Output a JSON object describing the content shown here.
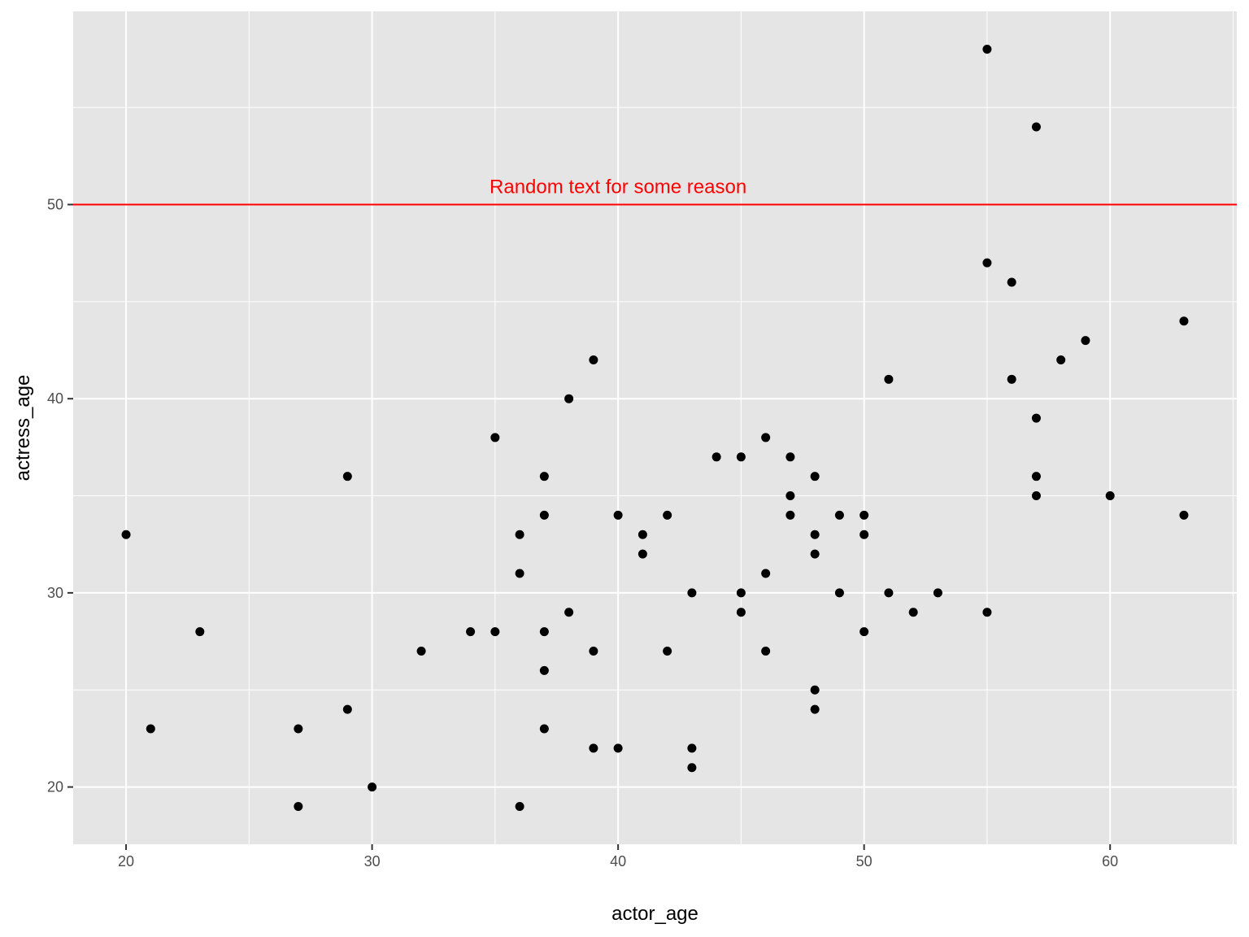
{
  "chart_data": {
    "type": "scatter",
    "xlabel": "actor_age",
    "ylabel": "actress_age",
    "xlim": [
      17.85,
      65.15
    ],
    "ylim": [
      17.05,
      59.95
    ],
    "xticks": [
      20,
      30,
      40,
      50,
      60
    ],
    "yticks": [
      20,
      30,
      40,
      50
    ],
    "grid": true,
    "background": "#e5e5e5",
    "grid_color": "#ffffff",
    "point_color": "#000000",
    "hline": {
      "y": 50,
      "color": "#ff0000"
    },
    "annotation": {
      "text": "Random text for some reason",
      "x": 40,
      "y": 50,
      "color": "#ff0000"
    },
    "points": [
      {
        "x": 55,
        "y": 58
      },
      {
        "x": 57,
        "y": 54
      },
      {
        "x": 55,
        "y": 47
      },
      {
        "x": 56,
        "y": 46
      },
      {
        "x": 63,
        "y": 44
      },
      {
        "x": 59,
        "y": 43
      },
      {
        "x": 58,
        "y": 42
      },
      {
        "x": 39,
        "y": 42
      },
      {
        "x": 51,
        "y": 41
      },
      {
        "x": 56,
        "y": 41
      },
      {
        "x": 38,
        "y": 40
      },
      {
        "x": 57,
        "y": 39
      },
      {
        "x": 35,
        "y": 38
      },
      {
        "x": 46,
        "y": 38
      },
      {
        "x": 44,
        "y": 37
      },
      {
        "x": 45,
        "y": 37
      },
      {
        "x": 47,
        "y": 37
      },
      {
        "x": 29,
        "y": 36
      },
      {
        "x": 37,
        "y": 36
      },
      {
        "x": 48,
        "y": 36
      },
      {
        "x": 57,
        "y": 36
      },
      {
        "x": 47,
        "y": 35
      },
      {
        "x": 57,
        "y": 35
      },
      {
        "x": 60,
        "y": 35
      },
      {
        "x": 37,
        "y": 34
      },
      {
        "x": 40,
        "y": 34
      },
      {
        "x": 42,
        "y": 34
      },
      {
        "x": 47,
        "y": 34
      },
      {
        "x": 49,
        "y": 34
      },
      {
        "x": 50,
        "y": 34
      },
      {
        "x": 63,
        "y": 34
      },
      {
        "x": 20,
        "y": 33
      },
      {
        "x": 36,
        "y": 33
      },
      {
        "x": 41,
        "y": 33
      },
      {
        "x": 48,
        "y": 33
      },
      {
        "x": 50,
        "y": 33
      },
      {
        "x": 41,
        "y": 32
      },
      {
        "x": 48,
        "y": 32
      },
      {
        "x": 36,
        "y": 31
      },
      {
        "x": 46,
        "y": 31
      },
      {
        "x": 43,
        "y": 30
      },
      {
        "x": 45,
        "y": 30
      },
      {
        "x": 49,
        "y": 30
      },
      {
        "x": 51,
        "y": 30
      },
      {
        "x": 53,
        "y": 30
      },
      {
        "x": 38,
        "y": 29
      },
      {
        "x": 45,
        "y": 29
      },
      {
        "x": 52,
        "y": 29
      },
      {
        "x": 55,
        "y": 29
      },
      {
        "x": 23,
        "y": 28
      },
      {
        "x": 34,
        "y": 28
      },
      {
        "x": 35,
        "y": 28
      },
      {
        "x": 37,
        "y": 28
      },
      {
        "x": 50,
        "y": 28
      },
      {
        "x": 32,
        "y": 27
      },
      {
        "x": 39,
        "y": 27
      },
      {
        "x": 42,
        "y": 27
      },
      {
        "x": 46,
        "y": 27
      },
      {
        "x": 37,
        "y": 26
      },
      {
        "x": 48,
        "y": 25
      },
      {
        "x": 29,
        "y": 24
      },
      {
        "x": 48,
        "y": 24
      },
      {
        "x": 21,
        "y": 23
      },
      {
        "x": 27,
        "y": 23
      },
      {
        "x": 37,
        "y": 23
      },
      {
        "x": 39,
        "y": 22
      },
      {
        "x": 40,
        "y": 22
      },
      {
        "x": 43,
        "y": 22
      },
      {
        "x": 43,
        "y": 21
      },
      {
        "x": 30,
        "y": 20
      },
      {
        "x": 27,
        "y": 19
      },
      {
        "x": 36,
        "y": 19
      }
    ]
  }
}
